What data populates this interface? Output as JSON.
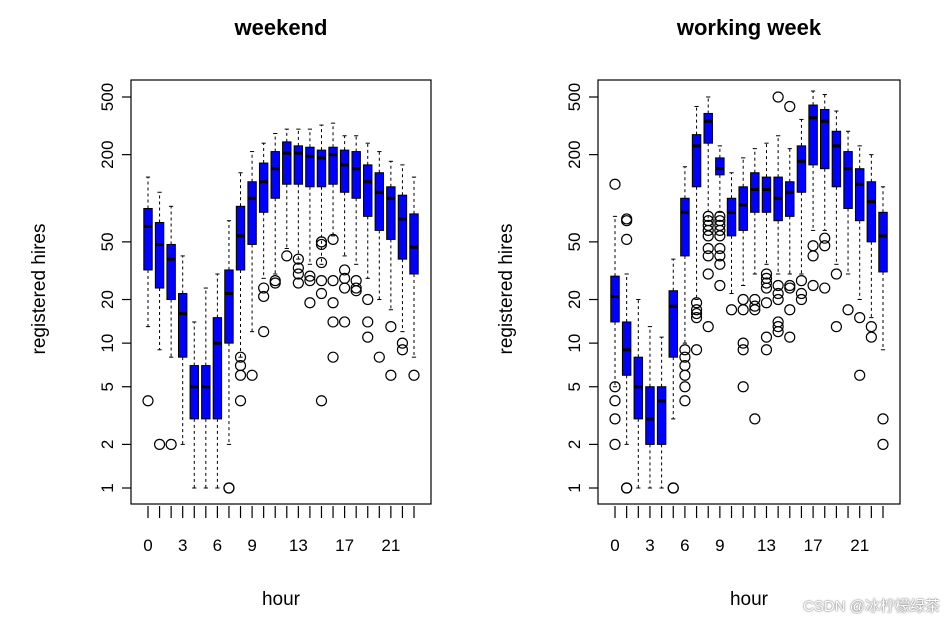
{
  "chart_data": [
    {
      "type": "boxplot",
      "title": "weekend",
      "xlabel": "hour",
      "ylabel": "registered hires",
      "yscale": "log",
      "yticks": [
        1,
        2,
        5,
        10,
        20,
        50,
        200,
        500
      ],
      "xtick_labels": [
        "0",
        "3",
        "6",
        "9",
        "13",
        "17",
        "21"
      ],
      "xtick_positions": [
        0,
        3,
        6,
        9,
        13,
        17,
        21
      ],
      "box_color": "#0000ff",
      "boxes": [
        {
          "hour": 0,
          "q1": 32,
          "median": 64,
          "q3": 85,
          "whisker_low": 13,
          "whisker_high": 140,
          "outliers": [
            4
          ]
        },
        {
          "hour": 1,
          "q1": 24,
          "median": 48,
          "q3": 68,
          "whisker_low": 9,
          "whisker_high": 110,
          "outliers": [
            2
          ]
        },
        {
          "hour": 2,
          "q1": 20,
          "median": 38,
          "q3": 48,
          "whisker_low": 8,
          "whisker_high": 88,
          "outliers": [
            2
          ]
        },
        {
          "hour": 3,
          "q1": 8,
          "median": 16,
          "q3": 22,
          "whisker_low": 2,
          "whisker_high": 40,
          "outliers": []
        },
        {
          "hour": 4,
          "q1": 3,
          "median": 5,
          "q3": 7,
          "whisker_low": 1,
          "whisker_high": 14,
          "outliers": []
        },
        {
          "hour": 5,
          "q1": 3,
          "median": 5,
          "q3": 7,
          "whisker_low": 1,
          "whisker_high": 24,
          "outliers": []
        },
        {
          "hour": 6,
          "q1": 3,
          "median": 10,
          "q3": 15,
          "whisker_low": 1,
          "whisker_high": 30,
          "outliers": []
        },
        {
          "hour": 7,
          "q1": 10,
          "median": 22,
          "q3": 32,
          "whisker_low": 2,
          "whisker_high": 70,
          "outliers": [
            1,
            1
          ]
        },
        {
          "hour": 8,
          "q1": 32,
          "median": 55,
          "q3": 88,
          "whisker_low": 8,
          "whisker_high": 150,
          "outliers": [
            4,
            6,
            7,
            8
          ]
        },
        {
          "hour": 9,
          "q1": 48,
          "median": 100,
          "q3": 130,
          "whisker_low": 12,
          "whisker_high": 210,
          "outliers": [
            6
          ]
        },
        {
          "hour": 10,
          "q1": 80,
          "median": 130,
          "q3": 175,
          "whisker_low": 28,
          "whisker_high": 240,
          "outliers": [
            12,
            21,
            24
          ]
        },
        {
          "hour": 11,
          "q1": 100,
          "median": 160,
          "q3": 210,
          "whisker_low": 30,
          "whisker_high": 280,
          "outliers": [
            26,
            27
          ]
        },
        {
          "hour": 12,
          "q1": 125,
          "median": 205,
          "q3": 245,
          "whisker_low": 45,
          "whisker_high": 300,
          "outliers": [
            40
          ]
        },
        {
          "hour": 13,
          "q1": 125,
          "median": 205,
          "q3": 230,
          "whisker_low": 38,
          "whisker_high": 300,
          "outliers": [
            26,
            30,
            33,
            38
          ]
        },
        {
          "hour": 14,
          "q1": 120,
          "median": 195,
          "q3": 225,
          "whisker_low": 35,
          "whisker_high": 300,
          "outliers": [
            19,
            27,
            29
          ]
        },
        {
          "hour": 15,
          "q1": 120,
          "median": 190,
          "q3": 215,
          "whisker_low": 35,
          "whisker_high": 320,
          "outliers": [
            4,
            22,
            27,
            36,
            48,
            50
          ]
        },
        {
          "hour": 16,
          "q1": 125,
          "median": 200,
          "q3": 225,
          "whisker_low": 55,
          "whisker_high": 330,
          "outliers": [
            8,
            14,
            19,
            27,
            52
          ]
        },
        {
          "hour": 17,
          "q1": 110,
          "median": 170,
          "q3": 215,
          "whisker_low": 40,
          "whisker_high": 270,
          "outliers": [
            14,
            24,
            28,
            32
          ]
        },
        {
          "hour": 18,
          "q1": 100,
          "median": 160,
          "q3": 210,
          "whisker_low": 35,
          "whisker_high": 270,
          "outliers": [
            23,
            24,
            27
          ]
        },
        {
          "hour": 19,
          "q1": 75,
          "median": 130,
          "q3": 170,
          "whisker_low": 28,
          "whisker_high": 240,
          "outliers": [
            11,
            14,
            20
          ]
        },
        {
          "hour": 20,
          "q1": 60,
          "median": 110,
          "q3": 150,
          "whisker_low": 20,
          "whisker_high": 210,
          "outliers": [
            8
          ]
        },
        {
          "hour": 21,
          "q1": 52,
          "median": 100,
          "q3": 120,
          "whisker_low": 17,
          "whisker_high": 180,
          "outliers": [
            6,
            13
          ]
        },
        {
          "hour": 22,
          "q1": 38,
          "median": 72,
          "q3": 105,
          "whisker_low": 12,
          "whisker_high": 170,
          "outliers": [
            9,
            10
          ]
        },
        {
          "hour": 23,
          "q1": 30,
          "median": 46,
          "q3": 78,
          "whisker_low": 8,
          "whisker_high": 140,
          "outliers": [
            6
          ]
        }
      ]
    },
    {
      "type": "boxplot",
      "title": "working week",
      "xlabel": "hour",
      "ylabel": "registered hires",
      "yscale": "log",
      "yticks": [
        1,
        2,
        5,
        10,
        20,
        50,
        200,
        500
      ],
      "xtick_labels": [
        "0",
        "3",
        "6",
        "9",
        "13",
        "17",
        "21"
      ],
      "xtick_positions": [
        0,
        3,
        6,
        9,
        13,
        17,
        21
      ],
      "box_color": "#0000ff",
      "boxes": [
        {
          "hour": 0,
          "q1": 14,
          "median": 21,
          "q3": 29,
          "whisker_low": 5,
          "whisker_high": 75,
          "outliers": [
            2,
            3,
            4,
            5,
            125
          ]
        },
        {
          "hour": 1,
          "q1": 6,
          "median": 9,
          "q3": 14,
          "whisker_low": 2,
          "whisker_high": 30,
          "outliers": [
            1,
            1,
            52,
            70,
            72
          ]
        },
        {
          "hour": 2,
          "q1": 3,
          "median": 5,
          "q3": 8,
          "whisker_low": 1,
          "whisker_high": 20,
          "outliers": []
        },
        {
          "hour": 3,
          "q1": 2,
          "median": 3,
          "q3": 5,
          "whisker_low": 1,
          "whisker_high": 13,
          "outliers": []
        },
        {
          "hour": 4,
          "q1": 2,
          "median": 4,
          "q3": 5,
          "whisker_low": 1,
          "whisker_high": 11,
          "outliers": []
        },
        {
          "hour": 5,
          "q1": 8,
          "median": 18,
          "q3": 23,
          "whisker_low": 3,
          "whisker_high": 38,
          "outliers": [
            1,
            1
          ]
        },
        {
          "hour": 6,
          "q1": 40,
          "median": 80,
          "q3": 100,
          "whisker_low": 10,
          "whisker_high": 165,
          "outliers": [
            4,
            5,
            6,
            7,
            8,
            9
          ]
        },
        {
          "hour": 7,
          "q1": 120,
          "median": 230,
          "q3": 275,
          "whisker_low": 20,
          "whisker_high": 430,
          "outliers": [
            9,
            15,
            16,
            17,
            19
          ]
        },
        {
          "hour": 8,
          "q1": 240,
          "median": 340,
          "q3": 385,
          "whisker_low": 70,
          "whisker_high": 500,
          "outliers": [
            13,
            30,
            40,
            45,
            55,
            60,
            65,
            70,
            75
          ]
        },
        {
          "hour": 9,
          "q1": 145,
          "median": 160,
          "q3": 190,
          "whisker_low": 80,
          "whisker_high": 230,
          "outliers": [
            25,
            35,
            40,
            45,
            55,
            60,
            65,
            70,
            75
          ]
        },
        {
          "hour": 10,
          "q1": 55,
          "median": 80,
          "q3": 100,
          "whisker_low": 22,
          "whisker_high": 150,
          "outliers": [
            17
          ]
        },
        {
          "hour": 11,
          "q1": 60,
          "median": 90,
          "q3": 120,
          "whisker_low": 25,
          "whisker_high": 190,
          "outliers": [
            5,
            9,
            10,
            17,
            20
          ]
        },
        {
          "hour": 12,
          "q1": 80,
          "median": 115,
          "q3": 150,
          "whisker_low": 30,
          "whisker_high": 220,
          "outliers": [
            3,
            17,
            18,
            20
          ]
        },
        {
          "hour": 13,
          "q1": 80,
          "median": 115,
          "q3": 140,
          "whisker_low": 35,
          "whisker_high": 240,
          "outliers": [
            9,
            11,
            19,
            24,
            26,
            28,
            30
          ]
        },
        {
          "hour": 14,
          "q1": 70,
          "median": 100,
          "q3": 140,
          "whisker_low": 30,
          "whisker_high": 270,
          "outliers": [
            12,
            13,
            14,
            20,
            22,
            25,
            500
          ]
        },
        {
          "hour": 15,
          "q1": 75,
          "median": 110,
          "q3": 130,
          "whisker_low": 30,
          "whisker_high": 220,
          "outliers": [
            11,
            17,
            24,
            25,
            430
          ]
        },
        {
          "hour": 16,
          "q1": 110,
          "median": 180,
          "q3": 230,
          "whisker_low": 30,
          "whisker_high": 350,
          "outliers": [
            20,
            22,
            27
          ]
        },
        {
          "hour": 17,
          "q1": 170,
          "median": 360,
          "q3": 440,
          "whisker_low": 60,
          "whisker_high": 550,
          "outliers": [
            25,
            40,
            47
          ]
        },
        {
          "hour": 18,
          "q1": 160,
          "median": 340,
          "q3": 410,
          "whisker_low": 60,
          "whisker_high": 520,
          "outliers": [
            24,
            47,
            53
          ]
        },
        {
          "hour": 19,
          "q1": 120,
          "median": 230,
          "q3": 290,
          "whisker_low": 35,
          "whisker_high": 400,
          "outliers": [
            13,
            30
          ]
        },
        {
          "hour": 20,
          "q1": 85,
          "median": 160,
          "q3": 210,
          "whisker_low": 30,
          "whisker_high": 290,
          "outliers": [
            17
          ]
        },
        {
          "hour": 21,
          "q1": 70,
          "median": 125,
          "q3": 160,
          "whisker_low": 20,
          "whisker_high": 230,
          "outliers": [
            6,
            15
          ]
        },
        {
          "hour": 22,
          "q1": 50,
          "median": 95,
          "q3": 130,
          "whisker_low": 15,
          "whisker_high": 200,
          "outliers": [
            11,
            13
          ]
        },
        {
          "hour": 23,
          "q1": 31,
          "median": 55,
          "q3": 80,
          "whisker_low": 9,
          "whisker_high": 120,
          "outliers": [
            2,
            3
          ]
        }
      ]
    }
  ],
  "watermark": "CSDN @冰柠檬绿茶"
}
